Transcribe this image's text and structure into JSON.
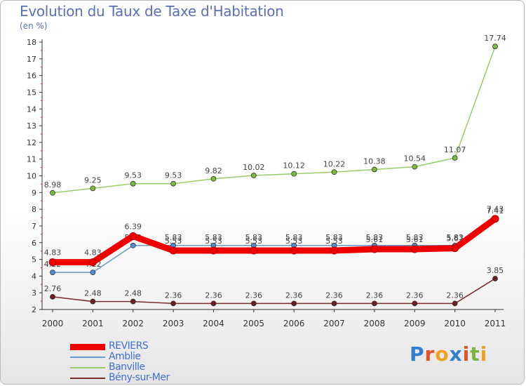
{
  "title": "Evolution du Taux de Taxe d'Habitation",
  "unit_label": "(en %)",
  "logo": {
    "letters": [
      {
        "ch": "P",
        "color": "#2f7fd0"
      },
      {
        "ch": "r",
        "color": "#e0522a"
      },
      {
        "ch": "o",
        "color": "#f0a020"
      },
      {
        "ch": "x",
        "color": "#2f7fd0"
      },
      {
        "ch": "i",
        "color": "#e0522a"
      },
      {
        "ch": "t",
        "color": "#7bb241"
      },
      {
        "ch": "i",
        "color": "#f0a020"
      }
    ]
  },
  "chart_data": {
    "type": "line",
    "title": "Evolution du Taux de Taxe d'Habitation",
    "ylabel": "(en %)",
    "xlabel": "",
    "x": [
      "2000",
      "2001",
      "2002",
      "2003",
      "2004",
      "2005",
      "2006",
      "2007",
      "2008",
      "2009",
      "2010",
      "2011"
    ],
    "ylim": [
      2,
      18
    ],
    "yticks": [
      2,
      3,
      4,
      5,
      6,
      7,
      8,
      9,
      10,
      11,
      12,
      13,
      14,
      15,
      16,
      17,
      18
    ],
    "grid": false,
    "legend_position": "bottom-left",
    "series": [
      {
        "name": "Banville",
        "color": "#99cc66",
        "marker": "#7dbb3f",
        "values": [
          8.98,
          9.25,
          9.53,
          9.53,
          9.82,
          10.02,
          10.12,
          10.22,
          10.38,
          10.54,
          11.07,
          17.74
        ],
        "labels": [
          "8.98",
          "9.25",
          "9.53",
          "9.53",
          "9.82",
          "10.02",
          "10.12",
          "10.22",
          "10.38",
          "10.54",
          "11.07",
          "17.74"
        ]
      },
      {
        "name": "Amblie",
        "color": "#6699cc",
        "marker": "#4f8fd0",
        "values": [
          4.22,
          4.22,
          5.83,
          5.83,
          5.83,
          5.83,
          5.83,
          5.83,
          5.83,
          5.83,
          5.83,
          7.41
        ],
        "labels": [
          "4.22",
          "4.22",
          "5.83",
          "5.83",
          "5.83",
          "5.83",
          "5.83",
          "5.83",
          "5.83",
          "5.83",
          "5.83",
          "7.41"
        ]
      },
      {
        "name": "Bény-sur-Mer",
        "color": "#7a2c2c",
        "marker": "#6a1e1e",
        "values": [
          2.76,
          2.48,
          2.48,
          2.36,
          2.36,
          2.36,
          2.36,
          2.36,
          2.36,
          2.36,
          2.36,
          3.85
        ],
        "labels": [
          "2.76",
          "2.48",
          "2.48",
          "2.36",
          "2.36",
          "2.36",
          "2.36",
          "2.36",
          "2.36",
          "2.36",
          "2.36",
          "3.85"
        ]
      },
      {
        "name": "REVIERS",
        "color": "#ee0000",
        "marker": "#cc0000",
        "values": [
          4.83,
          4.83,
          6.39,
          5.53,
          5.53,
          5.53,
          5.53,
          5.53,
          5.61,
          5.61,
          5.67,
          7.43
        ],
        "labels": [
          "4.83",
          "4.83",
          "6.39",
          "5.53",
          "5.53",
          "5.53",
          "5.53",
          "5.53",
          "5.61",
          "5.61",
          "5.67",
          "7.43"
        ]
      }
    ],
    "legend_order": [
      "REVIERS",
      "Amblie",
      "Banville",
      "Bény-sur-Mer"
    ]
  }
}
